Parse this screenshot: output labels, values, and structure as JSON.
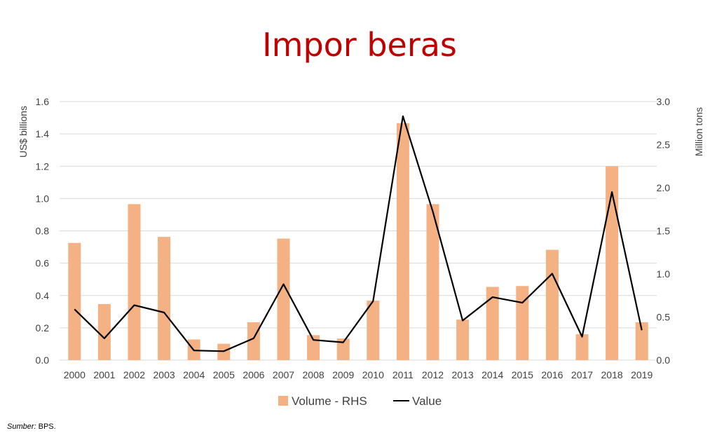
{
  "colors": {
    "title": "#c00000",
    "bar": "#f4b183",
    "line": "#000000",
    "grid": "#d9d9d9",
    "text": "#404040"
  },
  "source": {
    "label": "Sumber:",
    "text": " BPS."
  },
  "chart_data": {
    "type": "bar",
    "title": "Impor beras",
    "categories": [
      "2000",
      "2001",
      "2002",
      "2003",
      "2004",
      "2005",
      "2006",
      "2007",
      "2008",
      "2009",
      "2010",
      "2011",
      "2012",
      "2013",
      "2014",
      "2015",
      "2016",
      "2017",
      "2018",
      "2019"
    ],
    "series": [
      {
        "name": "Volume - RHS",
        "type": "bar",
        "axis": "right",
        "values": [
          1.36,
          0.65,
          1.81,
          1.43,
          0.24,
          0.19,
          0.44,
          1.41,
          0.29,
          0.25,
          0.69,
          2.75,
          1.81,
          0.47,
          0.85,
          0.86,
          1.28,
          0.3,
          2.25,
          0.44
        ]
      },
      {
        "name": "Value",
        "type": "line",
        "axis": "left",
        "values": [
          0.315,
          0.135,
          0.34,
          0.295,
          0.06,
          0.055,
          0.135,
          0.47,
          0.125,
          0.11,
          0.365,
          1.51,
          0.92,
          0.245,
          0.39,
          0.355,
          0.535,
          0.145,
          1.04,
          0.185
        ]
      }
    ],
    "ylabel": "US$ billions",
    "ylim": [
      0,
      1.6
    ],
    "yticks": [
      "0.0",
      "0.2",
      "0.4",
      "0.6",
      "0.8",
      "1.0",
      "1.2",
      "1.4",
      "1.6"
    ],
    "y2label": "Million tons",
    "y2lim": [
      0,
      3.0
    ],
    "y2ticks": [
      "0.0",
      "0.5",
      "1.0",
      "1.5",
      "2.0",
      "2.5",
      "3.0"
    ],
    "grid": true,
    "legend_position": "bottom"
  }
}
